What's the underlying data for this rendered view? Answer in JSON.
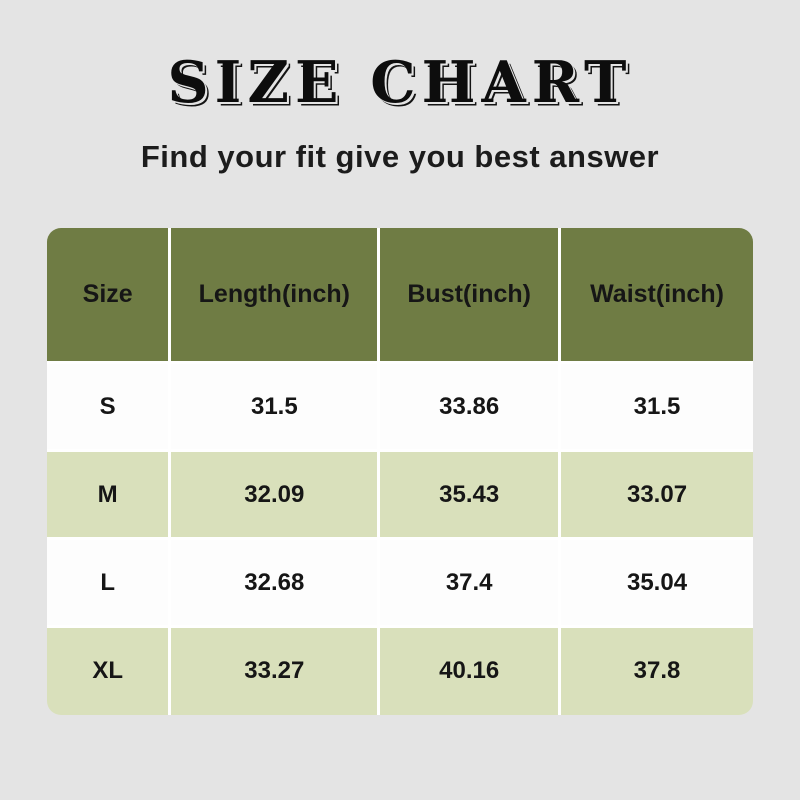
{
  "page": {
    "title": "SIZE CHART",
    "subtitle": "Find your fit give you best answer"
  },
  "colors": {
    "background": "#e4e4e4",
    "header_bg": "#6f7c44",
    "row_white_bg": "#fdfdfd",
    "row_green_bg": "#d9e0bb",
    "text": "#161616",
    "cell_divider": "#ffffff"
  },
  "table": {
    "headers": [
      "Size",
      "Length(inch)",
      "Bust(inch)",
      "Waist(inch)"
    ],
    "rows": [
      [
        "S",
        "31.5",
        "33.86",
        "31.5"
      ],
      [
        "M",
        "32.09",
        "35.43",
        "33.07"
      ],
      [
        "L",
        "32.68",
        "37.4",
        "35.04"
      ],
      [
        "XL",
        "33.27",
        "40.16",
        "37.8"
      ]
    ]
  },
  "chart_data": {
    "type": "table",
    "title": "SIZE CHART",
    "subtitle": "Find your fit give you best answer",
    "columns": [
      "Size",
      "Length(inch)",
      "Bust(inch)",
      "Waist(inch)"
    ],
    "rows": [
      {
        "size": "S",
        "length_inch": 31.5,
        "bust_inch": 33.86,
        "waist_inch": 31.5
      },
      {
        "size": "M",
        "length_inch": 32.09,
        "bust_inch": 35.43,
        "waist_inch": 33.07
      },
      {
        "size": "L",
        "length_inch": 32.68,
        "bust_inch": 37.4,
        "waist_inch": 35.04
      },
      {
        "size": "XL",
        "length_inch": 33.27,
        "bust_inch": 40.16,
        "waist_inch": 37.8
      }
    ],
    "layout": {
      "header_style": "olive-solid",
      "row_striping": "white/light-green",
      "grid": "white 3px dividers"
    }
  }
}
